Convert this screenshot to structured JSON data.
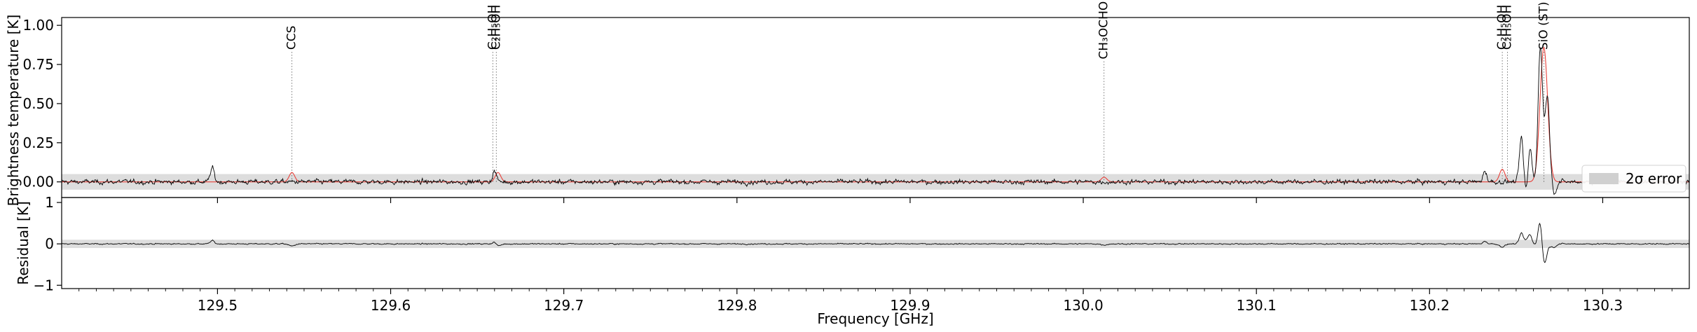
{
  "chart_data": [
    {
      "type": "line",
      "panel": "spectrum",
      "ylabel": "Brightness temperature [K]",
      "xlim": [
        129.41,
        130.35
      ],
      "ylim": [
        -0.1,
        1.05
      ],
      "yticks": [
        0.0,
        0.25,
        0.5,
        0.75,
        1.0
      ],
      "ytick_labels": [
        "0.00",
        "0.25",
        "0.50",
        "0.75",
        "1.00"
      ],
      "error_band": [
        -0.05,
        0.05
      ],
      "series": [
        {
          "role": "observed",
          "color": "#000000"
        },
        {
          "role": "model",
          "color": "#e8413a",
          "peaks": [
            {
              "x": 129.543,
              "y": 0.06
            },
            {
              "x": 129.662,
              "y": 0.06
            },
            {
              "x": 130.012,
              "y": 0.03
            },
            {
              "x": 130.242,
              "y": 0.08
            },
            {
              "x": 130.266,
              "y": 0.86
            }
          ]
        }
      ],
      "observed_features": [
        {
          "x": 129.497,
          "y": 0.09
        },
        {
          "x": 129.66,
          "y": 0.07
        },
        {
          "x": 130.232,
          "y": 0.07
        },
        {
          "x": 130.253,
          "y": 0.28
        },
        {
          "x": 130.258,
          "y": 0.22
        },
        {
          "x": 130.264,
          "y": 0.86
        },
        {
          "x": 130.268,
          "y": 0.55
        }
      ],
      "line_markers": [
        {
          "x": 129.543,
          "label": "CCS",
          "y_top": 0.83
        },
        {
          "x": 129.659,
          "label": "C₂H₅OH",
          "y_top": 0.83
        },
        {
          "x": 129.661,
          "label": "C₂H₅OH",
          "y_top": 0.83
        },
        {
          "x": 130.012,
          "label": "CH₃OCHO",
          "y_top": 0.77
        },
        {
          "x": 130.242,
          "label": "C₂H₅OH",
          "y_top": 0.83
        },
        {
          "x": 130.245,
          "label": "C₂H₅OH",
          "y_top": 0.83
        },
        {
          "x": 130.266,
          "label": "SiO (ST)",
          "y_top": 0.83
        }
      ],
      "legend": {
        "label": "2σ error",
        "placement": "lower-right"
      }
    },
    {
      "type": "line",
      "panel": "residual",
      "xlabel": "Frequency [GHz]",
      "ylabel": "Residual [K]",
      "xlim": [
        129.41,
        130.35
      ],
      "ylim": [
        -1.08,
        1.12
      ],
      "yticks": [
        -1,
        0,
        1
      ],
      "ytick_labels": [
        "−1",
        "0",
        "1"
      ],
      "xticks": [
        129.5,
        129.6,
        129.7,
        129.8,
        129.9,
        130.0,
        130.1,
        130.2,
        130.3
      ],
      "xtick_labels": [
        "129.5",
        "129.6",
        "129.7",
        "129.8",
        "129.9",
        "130.0",
        "130.1",
        "130.2",
        "130.3"
      ],
      "error_band": [
        -0.1,
        0.1
      ],
      "residual_features": [
        {
          "x": 130.256,
          "y": 0.55
        },
        {
          "x": 130.264,
          "y": 0.75
        },
        {
          "x": 130.268,
          "y": -0.85
        }
      ]
    }
  ]
}
